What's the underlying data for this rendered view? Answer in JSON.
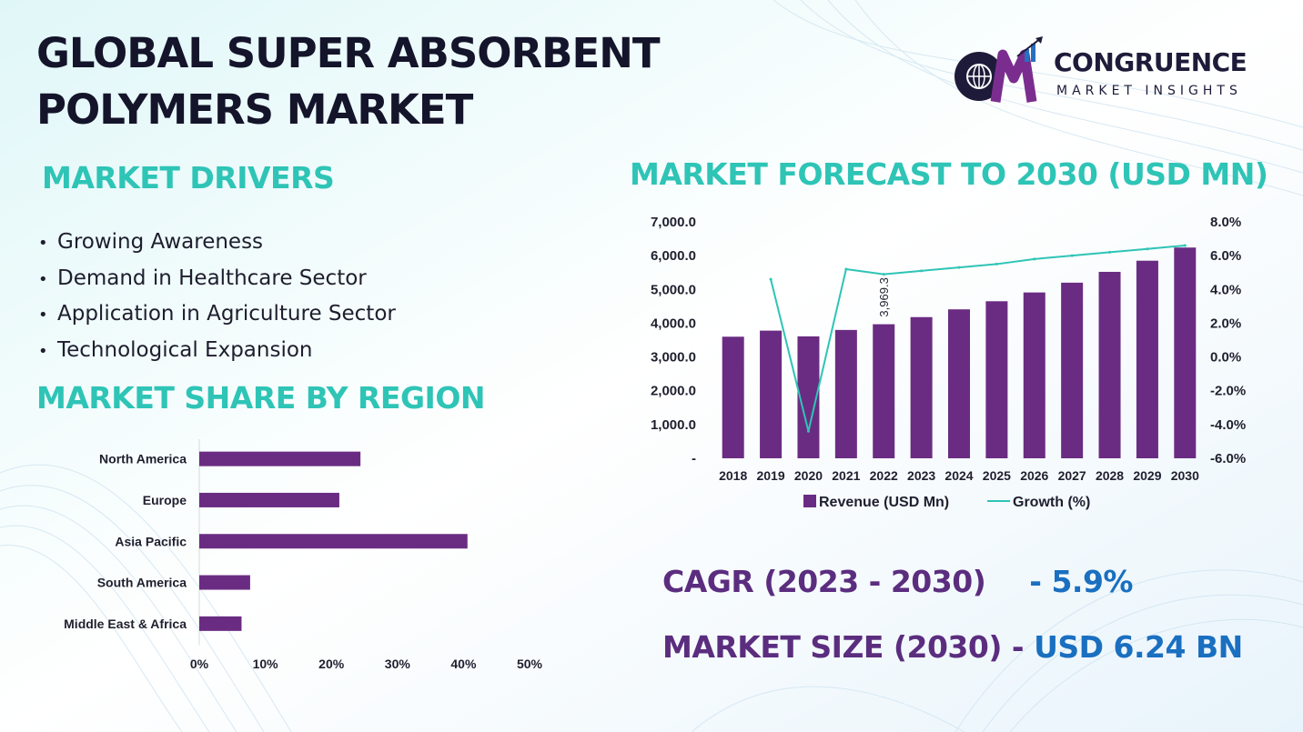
{
  "title": {
    "line1": "GLOBAL SUPER ABSORBENT",
    "line2": "POLYMERS MARKET"
  },
  "logo": {
    "name": "CONGRUENCE",
    "subtitle": "MARKET INSIGHTS",
    "mark": "CM"
  },
  "colors": {
    "accent": "#2ec4b6",
    "bar": "#6a2c82",
    "line": "#2ec4b6",
    "kpi_label": "#5b2d7f",
    "kpi_value": "#1a6fc0",
    "title": "#14142b"
  },
  "drivers": {
    "title": "MARKET DRIVERS",
    "items": [
      "Growing Awareness",
      "Demand in Healthcare Sector",
      "Application in Agriculture Sector",
      "Technological Expansion"
    ]
  },
  "region": {
    "title": "MARKET SHARE BY REGION"
  },
  "forecast": {
    "title": "MARKET FORECAST TO 2030 (USD MN)"
  },
  "chart_data": [
    {
      "type": "bar",
      "orientation": "horizontal",
      "title": "MARKET SHARE BY REGION",
      "categories": [
        "North America",
        "Europe",
        "Asia Pacific",
        "South America",
        "Middle East & Africa"
      ],
      "values": [
        24.4,
        21.2,
        40.6,
        7.7,
        6.4
      ],
      "xticks": [
        "0%",
        "10%",
        "20%",
        "30%",
        "40%",
        "50%"
      ],
      "xlim": [
        0,
        50
      ]
    },
    {
      "type": "bar+line",
      "title": "MARKET FORECAST TO 2030 (USD MN)",
      "categories": [
        "2018",
        "2019",
        "2020",
        "2021",
        "2022",
        "2023",
        "2024",
        "2025",
        "2026",
        "2027",
        "2028",
        "2029",
        "2030"
      ],
      "series": [
        {
          "name": "Revenue (USD Mn)",
          "type": "bar",
          "axis": "left",
          "values": [
            3600,
            3780,
            3610,
            3800,
            3969.3,
            4180,
            4410,
            4650,
            4910,
            5200,
            5520,
            5850,
            6240
          ]
        },
        {
          "name": "Growth (%)",
          "type": "line",
          "axis": "right",
          "values": [
            null,
            4.6,
            -4.4,
            5.2,
            4.9,
            5.1,
            5.3,
            5.5,
            5.8,
            6.0,
            6.2,
            6.4,
            6.6
          ]
        }
      ],
      "annotation": {
        "category": "2022",
        "text": "3,969.3"
      },
      "y_left": {
        "ticks": [
          "-",
          "1,000.0",
          "2,000.0",
          "3,000.0",
          "4,000.0",
          "5,000.0",
          "6,000.0",
          "7,000.0"
        ],
        "ylim": [
          0,
          7000
        ]
      },
      "y_right": {
        "ticks": [
          "-6.0%",
          "-4.0%",
          "-2.0%",
          "0.0%",
          "2.0%",
          "4.0%",
          "6.0%",
          "8.0%"
        ],
        "ylim": [
          -6,
          8
        ]
      },
      "legend": "bottom"
    }
  ],
  "kpis": {
    "cagr_label": "CAGR (2023 - 2030)",
    "cagr_value": "- 5.9%",
    "size_label": "MARKET SIZE (2030) -",
    "size_value": "USD 6.24 BN"
  }
}
